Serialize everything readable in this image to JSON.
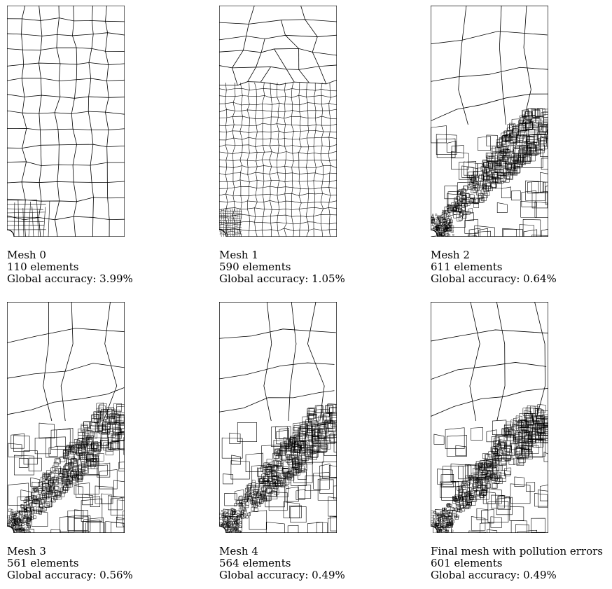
{
  "panels": [
    {
      "title": "Mesh 0",
      "elements": "110 elements",
      "accuracy": "Global accuracy: 3.99%",
      "density": 0
    },
    {
      "title": "Mesh 1",
      "elements": "590 elements",
      "accuracy": "Global accuracy: 1.05%",
      "density": 1
    },
    {
      "title": "Mesh 2",
      "elements": "611 elements",
      "accuracy": "Global accuracy: 0.64%",
      "density": 2
    },
    {
      "title": "Mesh 3",
      "elements": "561 elements",
      "accuracy": "Global accuracy: 0.56%",
      "density": 3
    },
    {
      "title": "Mesh 4",
      "elements": "564 elements",
      "accuracy": "Global accuracy: 0.49%",
      "density": 3
    },
    {
      "title": "Final mesh with pollution errors",
      "elements": "601 elements",
      "accuracy": "Global accuracy: 0.49%",
      "density": 3
    }
  ],
  "colors": {
    "line": "#000000",
    "background": "#ffffff"
  }
}
